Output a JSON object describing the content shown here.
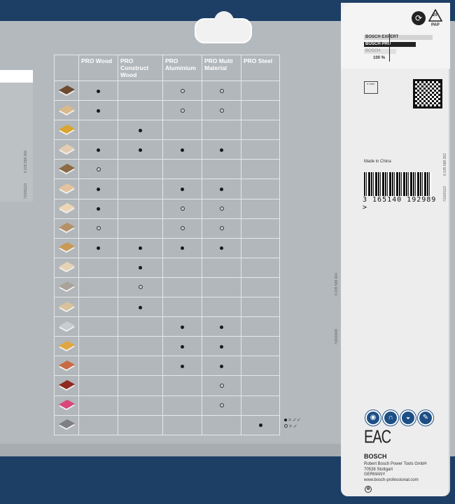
{
  "table": {
    "headers": [
      "",
      "PRO Wood",
      "PRO Construct Wood",
      "PRO Aluminium",
      "PRO Multi Material",
      "PRO Steel"
    ],
    "rows": [
      {
        "material_color": "#6e4a30",
        "marks": [
          "full",
          "",
          "empty",
          "empty",
          ""
        ]
      },
      {
        "material_color": "#d9b98a",
        "marks": [
          "full",
          "",
          "empty",
          "empty",
          ""
        ]
      },
      {
        "material_color": "#d9a52e",
        "marks": [
          "",
          "full",
          "",
          "",
          ""
        ]
      },
      {
        "material_color": "#e2cdb3",
        "marks": [
          "full",
          "full",
          "full",
          "full",
          ""
        ]
      },
      {
        "material_color": "#8c6a44",
        "marks": [
          "empty",
          "",
          "",
          "",
          ""
        ]
      },
      {
        "material_color": "#e3c39e",
        "marks": [
          "full",
          "",
          "full",
          "full",
          ""
        ]
      },
      {
        "material_color": "#ecd6b4",
        "marks": [
          "full",
          "",
          "empty",
          "empty",
          ""
        ]
      },
      {
        "material_color": "#b59169",
        "marks": [
          "empty",
          "",
          "empty",
          "empty",
          ""
        ]
      },
      {
        "material_color": "#c99a56",
        "marks": [
          "full",
          "full",
          "full",
          "full",
          ""
        ]
      },
      {
        "material_color": "#e6d2b5",
        "marks": [
          "",
          "full",
          "",
          "",
          ""
        ]
      },
      {
        "material_color": "#a9a39a",
        "marks": [
          "",
          "empty",
          "",
          "",
          ""
        ]
      },
      {
        "material_color": "#d9c29b",
        "marks": [
          "",
          "full",
          "",
          "",
          ""
        ]
      },
      {
        "material_color": "#c8cdd2",
        "marks": [
          "",
          "",
          "full",
          "full",
          ""
        ]
      },
      {
        "material_color": "#e0a640",
        "marks": [
          "",
          "",
          "full",
          "full",
          ""
        ]
      },
      {
        "material_color": "#c86a44",
        "marks": [
          "",
          "",
          "full",
          "full",
          ""
        ]
      },
      {
        "material_color": "#8e2a22",
        "marks": [
          "",
          "",
          "",
          "empty",
          ""
        ]
      },
      {
        "material_color": "#d8467a",
        "marks": [
          "",
          "",
          "",
          "empty",
          ""
        ]
      },
      {
        "material_color": "#7d7f82",
        "marks": [
          "",
          "",
          "",
          "",
          "full"
        ]
      }
    ]
  },
  "legend": {
    "full": "= ✓✓",
    "empty": "= ✓"
  },
  "side_codes": {
    "left_code": "6 035 588 369",
    "left_id": "71000123",
    "mid_code": "6 035 588 404",
    "mid_id": "71800008",
    "right_code": "6 035 588 382",
    "right_id": "71000123"
  },
  "card": {
    "recycle_code": "20",
    "recycle_label": "PAP",
    "tiers": [
      "BOSCH EXPERT",
      "BOSCH PRO",
      "BOSCH"
    ],
    "tier_percent": "100 %",
    "speed_label": "n max.",
    "made_in": "Made in China",
    "barcode_number": "3 165140 192989 >",
    "eac": "EAC",
    "brand": "BOSCH",
    "address": [
      "Robert Bosch Power Tools GmbH",
      "70538 Stuttgart",
      "GERMANY",
      "www.bosch-professional.com"
    ],
    "safety_icons": [
      "eye-protection-icon",
      "ear-protection-icon",
      "dust-mask-icon",
      "read-manual-icon"
    ]
  },
  "colors": {
    "navy": "#1d3f66",
    "panel": "#b4b9bd",
    "safety_blue": "#1d4f85"
  }
}
